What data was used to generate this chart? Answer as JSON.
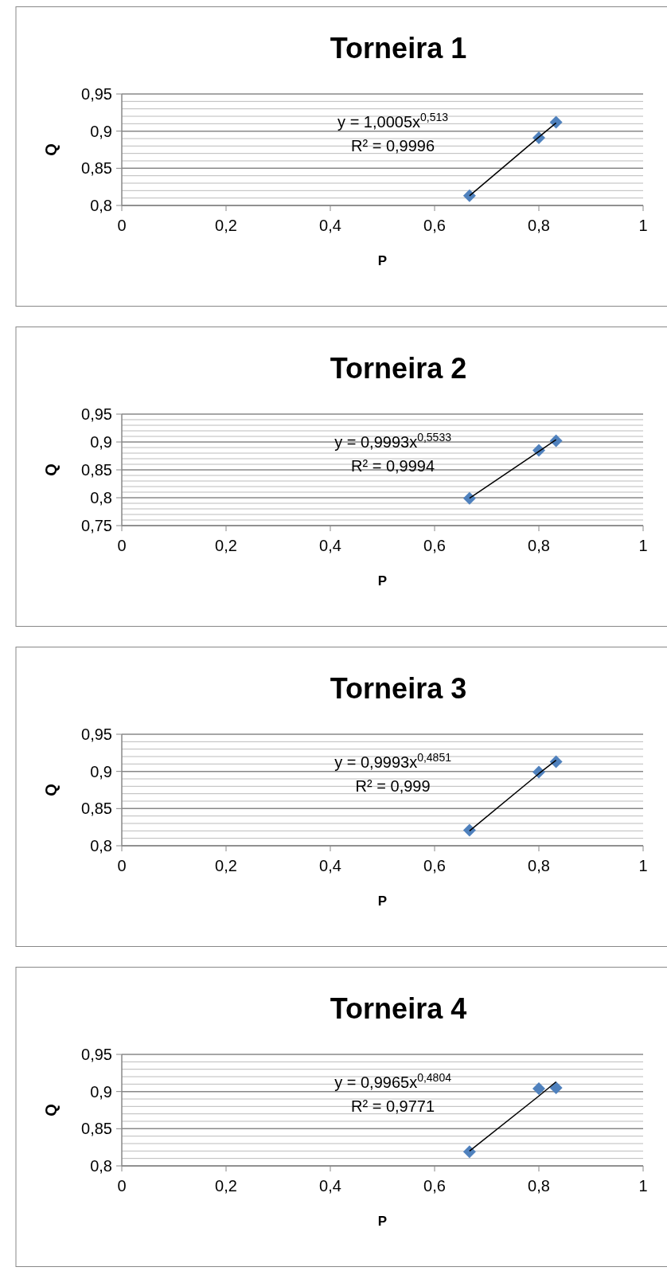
{
  "chart_data": [
    {
      "type": "scatter",
      "title": "Torneira 1",
      "xlabel": "P",
      "ylabel": "Q",
      "marker": "diamond",
      "grid": "y",
      "xlim": [
        0,
        1
      ],
      "ylim": [
        0.8,
        0.95
      ],
      "xticks": [
        {
          "value": 0,
          "label": "0"
        },
        {
          "value": 0.2,
          "label": "0,2"
        },
        {
          "value": 0.4,
          "label": "0,4"
        },
        {
          "value": 0.6,
          "label": "0,6"
        },
        {
          "value": 0.8,
          "label": "0,8"
        },
        {
          "value": 1,
          "label": "1"
        }
      ],
      "yticks": [
        {
          "value": 0.8,
          "label": "0,8"
        },
        {
          "value": 0.81,
          "label": null
        },
        {
          "value": 0.82,
          "label": null
        },
        {
          "value": 0.83,
          "label": null
        },
        {
          "value": 0.84,
          "label": null
        },
        {
          "value": 0.85,
          "label": "0,85"
        },
        {
          "value": 0.86,
          "label": null
        },
        {
          "value": 0.87,
          "label": null
        },
        {
          "value": 0.88,
          "label": null
        },
        {
          "value": 0.89,
          "label": null
        },
        {
          "value": 0.9,
          "label": "0,9"
        },
        {
          "value": 0.91,
          "label": null
        },
        {
          "value": 0.92,
          "label": null
        },
        {
          "value": 0.93,
          "label": null
        },
        {
          "value": 0.94,
          "label": null
        },
        {
          "value": 0.95,
          "label": "0,95"
        }
      ],
      "series": [
        {
          "type": "scatter",
          "color": "#4f81bd",
          "x": [
            0.667,
            0.8,
            0.833
          ],
          "values": [
            0.813,
            0.891,
            0.912
          ]
        },
        {
          "type": "line",
          "color": "#000000",
          "marker": "none",
          "x": [
            0.667,
            0.8,
            0.833
          ],
          "values": [
            0.813,
            0.892,
            0.911
          ]
        }
      ],
      "annotations": [
        "y = 1,0005x$^{0,513}$",
        "R² = 0,9996"
      ]
    },
    {
      "type": "scatter",
      "title": "Torneira 2",
      "xlabel": "P",
      "ylabel": "Q",
      "marker": "diamond",
      "grid": "y",
      "xlim": [
        0,
        1
      ],
      "ylim": [
        0.75,
        0.95
      ],
      "xticks": [
        {
          "value": 0,
          "label": "0"
        },
        {
          "value": 0.2,
          "label": "0,2"
        },
        {
          "value": 0.4,
          "label": "0,4"
        },
        {
          "value": 0.6,
          "label": "0,6"
        },
        {
          "value": 0.8,
          "label": "0,8"
        },
        {
          "value": 1,
          "label": "1"
        }
      ],
      "yticks": [
        {
          "value": 0.75,
          "label": "0,75"
        },
        {
          "value": 0.76,
          "label": null
        },
        {
          "value": 0.77,
          "label": null
        },
        {
          "value": 0.78,
          "label": null
        },
        {
          "value": 0.79,
          "label": null
        },
        {
          "value": 0.8,
          "label": "0,8"
        },
        {
          "value": 0.81,
          "label": null
        },
        {
          "value": 0.82,
          "label": null
        },
        {
          "value": 0.83,
          "label": null
        },
        {
          "value": 0.84,
          "label": null
        },
        {
          "value": 0.85,
          "label": "0,85"
        },
        {
          "value": 0.86,
          "label": null
        },
        {
          "value": 0.87,
          "label": null
        },
        {
          "value": 0.88,
          "label": null
        },
        {
          "value": 0.89,
          "label": null
        },
        {
          "value": 0.9,
          "label": "0,9"
        },
        {
          "value": 0.91,
          "label": null
        },
        {
          "value": 0.92,
          "label": null
        },
        {
          "value": 0.93,
          "label": null
        },
        {
          "value": 0.94,
          "label": null
        },
        {
          "value": 0.95,
          "label": "0,95"
        }
      ],
      "series": [
        {
          "type": "scatter",
          "color": "#4f81bd",
          "x": [
            0.667,
            0.8,
            0.833
          ],
          "values": [
            0.799,
            0.885,
            0.902
          ]
        },
        {
          "type": "line",
          "color": "#000000",
          "marker": "none",
          "x": [
            0.667,
            0.8,
            0.833
          ],
          "values": [
            0.799,
            0.883,
            0.904
          ]
        }
      ],
      "annotations": [
        "y = 0,9993x$^{0,5533}$",
        "R² = 0,9994"
      ]
    },
    {
      "type": "scatter",
      "title": "Torneira 3",
      "xlabel": "P",
      "ylabel": "Q",
      "marker": "diamond",
      "grid": "y",
      "xlim": [
        0,
        1
      ],
      "ylim": [
        0.8,
        0.95
      ],
      "xticks": [
        {
          "value": 0,
          "label": "0"
        },
        {
          "value": 0.2,
          "label": "0,2"
        },
        {
          "value": 0.4,
          "label": "0,4"
        },
        {
          "value": 0.6,
          "label": "0,6"
        },
        {
          "value": 0.8,
          "label": "0,8"
        },
        {
          "value": 1,
          "label": "1"
        }
      ],
      "yticks": [
        {
          "value": 0.8,
          "label": "0,8"
        },
        {
          "value": 0.81,
          "label": null
        },
        {
          "value": 0.82,
          "label": null
        },
        {
          "value": 0.83,
          "label": null
        },
        {
          "value": 0.84,
          "label": null
        },
        {
          "value": 0.85,
          "label": "0,85"
        },
        {
          "value": 0.86,
          "label": null
        },
        {
          "value": 0.87,
          "label": null
        },
        {
          "value": 0.88,
          "label": null
        },
        {
          "value": 0.89,
          "label": null
        },
        {
          "value": 0.9,
          "label": "0,9"
        },
        {
          "value": 0.91,
          "label": null
        },
        {
          "value": 0.92,
          "label": null
        },
        {
          "value": 0.93,
          "label": null
        },
        {
          "value": 0.94,
          "label": null
        },
        {
          "value": 0.95,
          "label": "0,95"
        }
      ],
      "series": [
        {
          "type": "scatter",
          "color": "#4f81bd",
          "x": [
            0.667,
            0.8,
            0.833
          ],
          "values": [
            0.821,
            0.899,
            0.913
          ]
        },
        {
          "type": "line",
          "color": "#000000",
          "marker": "none",
          "x": [
            0.667,
            0.8,
            0.833
          ],
          "values": [
            0.82,
            0.897,
            0.915
          ]
        }
      ],
      "annotations": [
        "y = 0,9993x$^{0,4851}$",
        "R² = 0,999"
      ]
    },
    {
      "type": "scatter",
      "title": "Torneira 4",
      "xlabel": "P",
      "ylabel": "Q",
      "marker": "diamond",
      "grid": "y",
      "xlim": [
        0,
        1
      ],
      "ylim": [
        0.8,
        0.95
      ],
      "xticks": [
        {
          "value": 0,
          "label": "0"
        },
        {
          "value": 0.2,
          "label": "0,2"
        },
        {
          "value": 0.4,
          "label": "0,4"
        },
        {
          "value": 0.6,
          "label": "0,6"
        },
        {
          "value": 0.8,
          "label": "0,8"
        },
        {
          "value": 1,
          "label": "1"
        }
      ],
      "yticks": [
        {
          "value": 0.8,
          "label": "0,8"
        },
        {
          "value": 0.81,
          "label": null
        },
        {
          "value": 0.82,
          "label": null
        },
        {
          "value": 0.83,
          "label": null
        },
        {
          "value": 0.84,
          "label": null
        },
        {
          "value": 0.85,
          "label": "0,85"
        },
        {
          "value": 0.86,
          "label": null
        },
        {
          "value": 0.87,
          "label": null
        },
        {
          "value": 0.88,
          "label": null
        },
        {
          "value": 0.89,
          "label": null
        },
        {
          "value": 0.9,
          "label": "0,9"
        },
        {
          "value": 0.91,
          "label": null
        },
        {
          "value": 0.92,
          "label": null
        },
        {
          "value": 0.93,
          "label": null
        },
        {
          "value": 0.94,
          "label": null
        },
        {
          "value": 0.95,
          "label": "0,95"
        }
      ],
      "series": [
        {
          "type": "scatter",
          "color": "#4f81bd",
          "x": [
            0.667,
            0.8,
            0.833
          ],
          "values": [
            0.819,
            0.904,
            0.905
          ]
        },
        {
          "type": "line",
          "color": "#000000",
          "marker": "none",
          "x": [
            0.667,
            0.8,
            0.833
          ],
          "values": [
            0.82,
            0.894,
            0.913
          ]
        }
      ],
      "annotations": [
        "y = 0,9965x$^{0,4804}$",
        "R² = 0,9771"
      ]
    }
  ]
}
